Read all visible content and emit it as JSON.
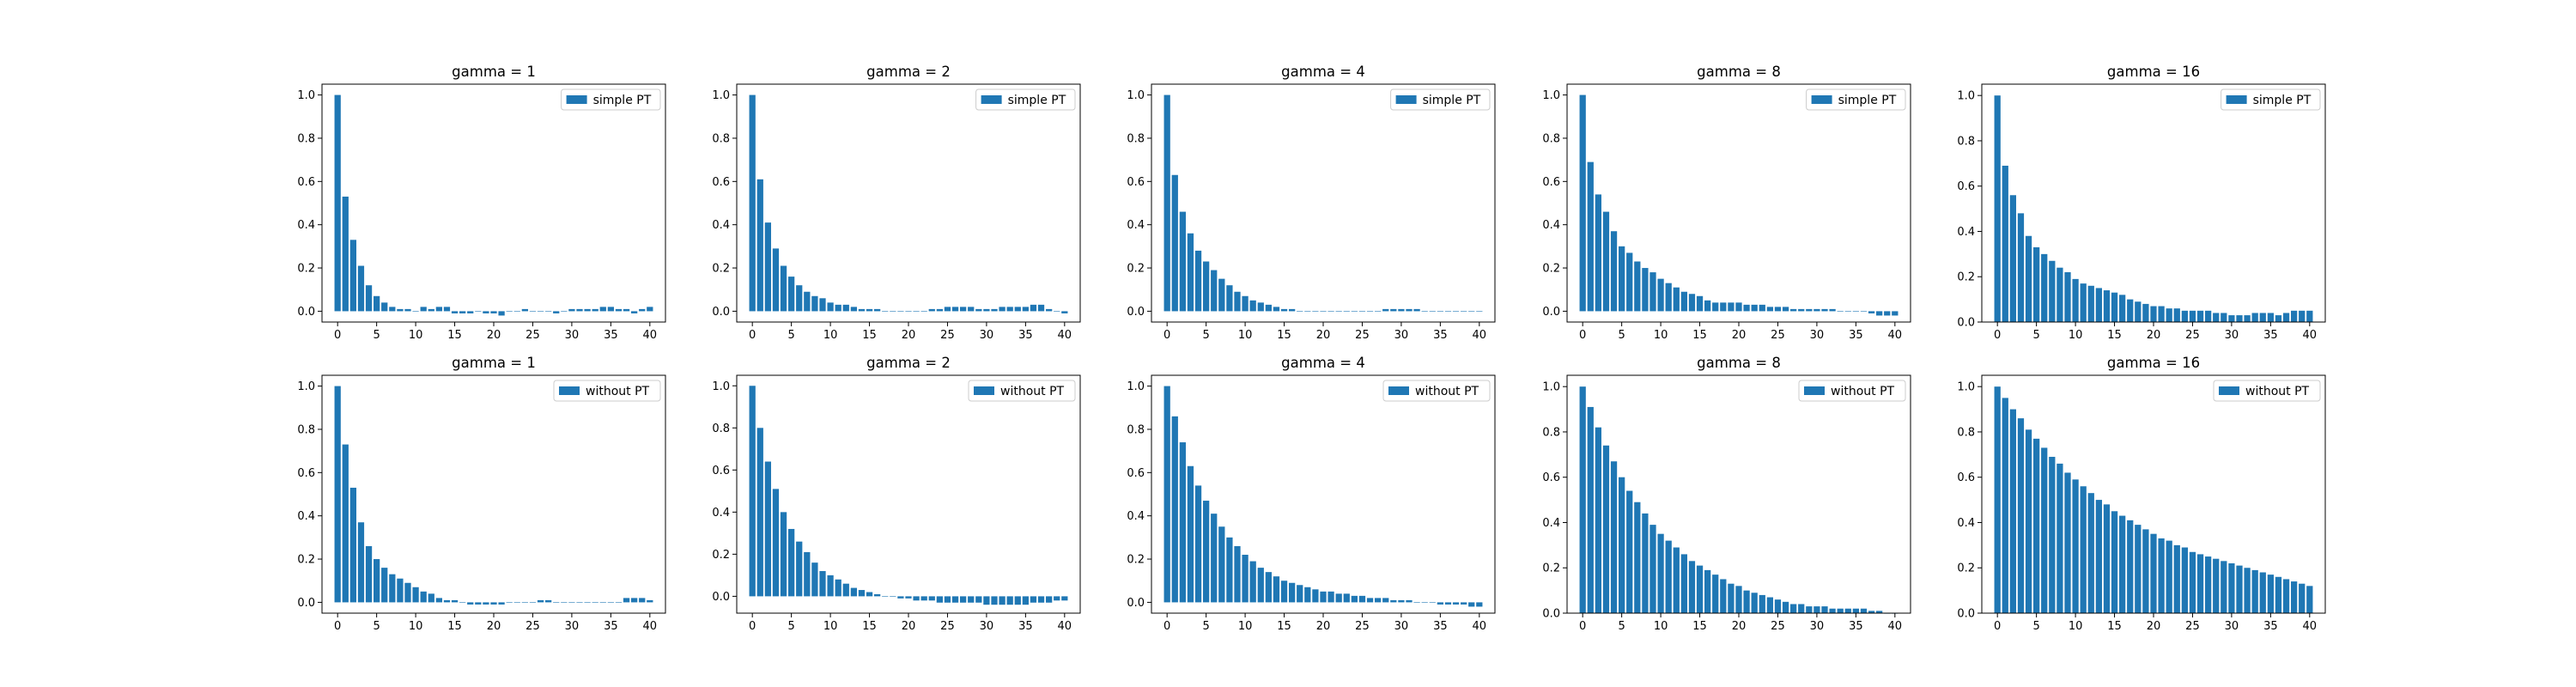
{
  "chart_data": [
    {
      "type": "bar",
      "title": "gamma = 1",
      "series": [
        {
          "name": "simple PT",
          "color": "#1f77b4",
          "values": [
            1.0,
            0.53,
            0.33,
            0.21,
            0.12,
            0.07,
            0.04,
            0.02,
            0.01,
            0.01,
            0.0,
            0.02,
            0.01,
            0.02,
            0.02,
            -0.01,
            -0.01,
            -0.01,
            0.0,
            -0.01,
            -0.01,
            -0.02,
            0.0,
            0.0,
            0.01,
            0.0,
            0.0,
            0.0,
            -0.01,
            0.0,
            0.01,
            0.01,
            0.01,
            0.01,
            0.02,
            0.02,
            0.01,
            0.01,
            -0.01,
            0.01,
            0.02
          ]
        }
      ],
      "xlim": [
        -2,
        42
      ],
      "ylim": [
        -0.05,
        1.05
      ],
      "xticks": [
        "0",
        "5",
        "10",
        "15",
        "20",
        "25",
        "30",
        "35",
        "40"
      ],
      "yticks": [
        "0.0",
        "0.2",
        "0.4",
        "0.6",
        "0.8",
        "1.0"
      ],
      "legend": "upper right"
    },
    {
      "type": "bar",
      "title": "gamma = 2",
      "series": [
        {
          "name": "simple PT",
          "color": "#1f77b4",
          "values": [
            1.0,
            0.61,
            0.41,
            0.29,
            0.21,
            0.16,
            0.12,
            0.09,
            0.07,
            0.06,
            0.04,
            0.03,
            0.03,
            0.02,
            0.01,
            0.01,
            0.01,
            0.0,
            0.0,
            0.0,
            0.0,
            0.0,
            0.0,
            0.01,
            0.01,
            0.02,
            0.02,
            0.02,
            0.02,
            0.01,
            0.01,
            0.01,
            0.02,
            0.02,
            0.02,
            0.02,
            0.03,
            0.03,
            0.01,
            0.0,
            -0.01
          ]
        }
      ],
      "xlim": [
        -2,
        42
      ],
      "ylim": [
        -0.05,
        1.05
      ],
      "xticks": [
        "0",
        "5",
        "10",
        "15",
        "20",
        "25",
        "30",
        "35",
        "40"
      ],
      "yticks": [
        "0.0",
        "0.2",
        "0.4",
        "0.6",
        "0.8",
        "1.0"
      ],
      "legend": "upper right"
    },
    {
      "type": "bar",
      "title": "gamma = 4",
      "series": [
        {
          "name": "simple PT",
          "color": "#1f77b4",
          "values": [
            1.0,
            0.63,
            0.46,
            0.36,
            0.28,
            0.23,
            0.19,
            0.15,
            0.12,
            0.09,
            0.07,
            0.05,
            0.04,
            0.03,
            0.02,
            0.01,
            0.01,
            0.0,
            0.0,
            0.0,
            0.0,
            0.0,
            0.0,
            0.0,
            0.0,
            0.0,
            0.0,
            0.0,
            0.01,
            0.01,
            0.01,
            0.01,
            0.01,
            0.0,
            0.0,
            0.0,
            0.0,
            0.0,
            0.0,
            0.0,
            0.0
          ]
        }
      ],
      "xlim": [
        -2,
        42
      ],
      "ylim": [
        -0.05,
        1.05
      ],
      "xticks": [
        "0",
        "5",
        "10",
        "15",
        "20",
        "25",
        "30",
        "35",
        "40"
      ],
      "yticks": [
        "0.0",
        "0.2",
        "0.4",
        "0.6",
        "0.8",
        "1.0"
      ],
      "legend": "upper right"
    },
    {
      "type": "bar",
      "title": "gamma = 8",
      "series": [
        {
          "name": "simple PT",
          "color": "#1f77b4",
          "values": [
            1.0,
            0.69,
            0.54,
            0.46,
            0.37,
            0.3,
            0.27,
            0.23,
            0.2,
            0.18,
            0.15,
            0.13,
            0.11,
            0.09,
            0.08,
            0.07,
            0.05,
            0.04,
            0.04,
            0.04,
            0.04,
            0.03,
            0.03,
            0.03,
            0.02,
            0.02,
            0.02,
            0.01,
            0.01,
            0.01,
            0.01,
            0.01,
            0.01,
            0.0,
            0.0,
            0.0,
            0.0,
            -0.01,
            -0.02,
            -0.02,
            -0.02
          ]
        }
      ],
      "xlim": [
        -2,
        42
      ],
      "ylim": [
        -0.05,
        1.05
      ],
      "xticks": [
        "0",
        "5",
        "10",
        "15",
        "20",
        "25",
        "30",
        "35",
        "40"
      ],
      "yticks": [
        "0.0",
        "0.2",
        "0.4",
        "0.6",
        "0.8",
        "1.0"
      ],
      "legend": "upper right"
    },
    {
      "type": "bar",
      "title": "gamma = 16",
      "series": [
        {
          "name": "simple PT",
          "color": "#1f77b4",
          "values": [
            1.0,
            0.69,
            0.56,
            0.48,
            0.38,
            0.33,
            0.3,
            0.27,
            0.24,
            0.22,
            0.19,
            0.17,
            0.16,
            0.15,
            0.14,
            0.13,
            0.12,
            0.1,
            0.09,
            0.08,
            0.07,
            0.07,
            0.06,
            0.06,
            0.05,
            0.05,
            0.05,
            0.05,
            0.04,
            0.04,
            0.03,
            0.03,
            0.03,
            0.04,
            0.04,
            0.04,
            0.03,
            0.04,
            0.05,
            0.05,
            0.05
          ]
        }
      ],
      "xlim": [
        -2,
        42
      ],
      "ylim": [
        0.0,
        1.05
      ],
      "xticks": [
        "0",
        "5",
        "10",
        "15",
        "20",
        "25",
        "30",
        "35",
        "40"
      ],
      "yticks": [
        "0.0",
        "0.2",
        "0.4",
        "0.6",
        "0.8",
        "1.0"
      ],
      "legend": "upper right"
    },
    {
      "type": "bar",
      "title": "gamma = 1",
      "series": [
        {
          "name": "without PT",
          "color": "#1f77b4",
          "values": [
            1.0,
            0.73,
            0.53,
            0.37,
            0.26,
            0.2,
            0.16,
            0.13,
            0.11,
            0.09,
            0.07,
            0.05,
            0.04,
            0.02,
            0.01,
            0.01,
            0.0,
            -0.01,
            -0.01,
            -0.01,
            -0.01,
            -0.01,
            0.0,
            0.0,
            0.0,
            0.0,
            0.01,
            0.01,
            0.0,
            0.0,
            0.0,
            0.0,
            0.0,
            0.0,
            0.0,
            0.0,
            0.0,
            0.02,
            0.02,
            0.02,
            0.01
          ]
        }
      ],
      "xlim": [
        -2,
        42
      ],
      "ylim": [
        -0.05,
        1.05
      ],
      "xticks": [
        "0",
        "5",
        "10",
        "15",
        "20",
        "25",
        "30",
        "35",
        "40"
      ],
      "yticks": [
        "0.0",
        "0.2",
        "0.4",
        "0.6",
        "0.8",
        "1.0"
      ],
      "legend": "upper right"
    },
    {
      "type": "bar",
      "title": "gamma = 2",
      "series": [
        {
          "name": "without PT",
          "color": "#1f77b4",
          "values": [
            1.0,
            0.8,
            0.64,
            0.51,
            0.4,
            0.32,
            0.26,
            0.21,
            0.16,
            0.12,
            0.1,
            0.08,
            0.06,
            0.04,
            0.03,
            0.02,
            0.01,
            0.0,
            0.0,
            -0.01,
            -0.01,
            -0.02,
            -0.02,
            -0.02,
            -0.03,
            -0.03,
            -0.03,
            -0.03,
            -0.03,
            -0.03,
            -0.04,
            -0.04,
            -0.04,
            -0.04,
            -0.04,
            -0.04,
            -0.03,
            -0.03,
            -0.03,
            -0.02,
            -0.02
          ]
        }
      ],
      "xlim": [
        -2,
        42
      ],
      "ylim": [
        -0.08,
        1.05
      ],
      "xticks": [
        "0",
        "5",
        "10",
        "15",
        "20",
        "25",
        "30",
        "35",
        "40"
      ],
      "yticks": [
        "0.0",
        "0.2",
        "0.4",
        "0.6",
        "0.8",
        "1.0"
      ],
      "legend": "upper right"
    },
    {
      "type": "bar",
      "title": "gamma = 4",
      "series": [
        {
          "name": "without PT",
          "color": "#1f77b4",
          "values": [
            1.0,
            0.86,
            0.74,
            0.63,
            0.54,
            0.47,
            0.41,
            0.35,
            0.3,
            0.26,
            0.22,
            0.19,
            0.16,
            0.14,
            0.12,
            0.1,
            0.09,
            0.08,
            0.07,
            0.06,
            0.05,
            0.05,
            0.04,
            0.04,
            0.03,
            0.03,
            0.02,
            0.02,
            0.02,
            0.01,
            0.01,
            0.01,
            0.0,
            0.0,
            0.0,
            -0.01,
            -0.01,
            -0.01,
            -0.01,
            -0.02,
            -0.02
          ]
        }
      ],
      "xlim": [
        -2,
        42
      ],
      "ylim": [
        -0.05,
        1.05
      ],
      "xticks": [
        "0",
        "5",
        "10",
        "15",
        "20",
        "25",
        "30",
        "35",
        "40"
      ],
      "yticks": [
        "0.0",
        "0.2",
        "0.4",
        "0.6",
        "0.8",
        "1.0"
      ],
      "legend": "upper right"
    },
    {
      "type": "bar",
      "title": "gamma = 8",
      "series": [
        {
          "name": "without PT",
          "color": "#1f77b4",
          "values": [
            1.0,
            0.91,
            0.82,
            0.74,
            0.67,
            0.6,
            0.54,
            0.49,
            0.44,
            0.39,
            0.35,
            0.32,
            0.29,
            0.26,
            0.23,
            0.21,
            0.19,
            0.17,
            0.15,
            0.13,
            0.12,
            0.1,
            0.09,
            0.08,
            0.07,
            0.06,
            0.05,
            0.04,
            0.04,
            0.03,
            0.03,
            0.03,
            0.02,
            0.02,
            0.02,
            0.02,
            0.02,
            0.01,
            0.01,
            0.0,
            0.0
          ]
        }
      ],
      "xlim": [
        -2,
        42
      ],
      "ylim": [
        0.0,
        1.05
      ],
      "xticks": [
        "0",
        "5",
        "10",
        "15",
        "20",
        "25",
        "30",
        "35",
        "40"
      ],
      "yticks": [
        "0.0",
        "0.2",
        "0.4",
        "0.6",
        "0.8",
        "1.0"
      ],
      "legend": "upper right"
    },
    {
      "type": "bar",
      "title": "gamma = 16",
      "series": [
        {
          "name": "without PT",
          "color": "#1f77b4",
          "values": [
            1.0,
            0.95,
            0.9,
            0.86,
            0.81,
            0.77,
            0.73,
            0.69,
            0.66,
            0.62,
            0.59,
            0.56,
            0.53,
            0.5,
            0.48,
            0.45,
            0.43,
            0.41,
            0.39,
            0.37,
            0.35,
            0.33,
            0.32,
            0.3,
            0.29,
            0.27,
            0.26,
            0.25,
            0.24,
            0.23,
            0.22,
            0.21,
            0.2,
            0.19,
            0.18,
            0.17,
            0.16,
            0.15,
            0.14,
            0.13,
            0.12
          ]
        }
      ],
      "xlim": [
        -2,
        42
      ],
      "ylim": [
        0.0,
        1.05
      ],
      "xticks": [
        "0",
        "5",
        "10",
        "15",
        "20",
        "25",
        "30",
        "35",
        "40"
      ],
      "yticks": [
        "0.0",
        "0.2",
        "0.4",
        "0.6",
        "0.8",
        "1.0"
      ],
      "legend": "upper right"
    }
  ]
}
